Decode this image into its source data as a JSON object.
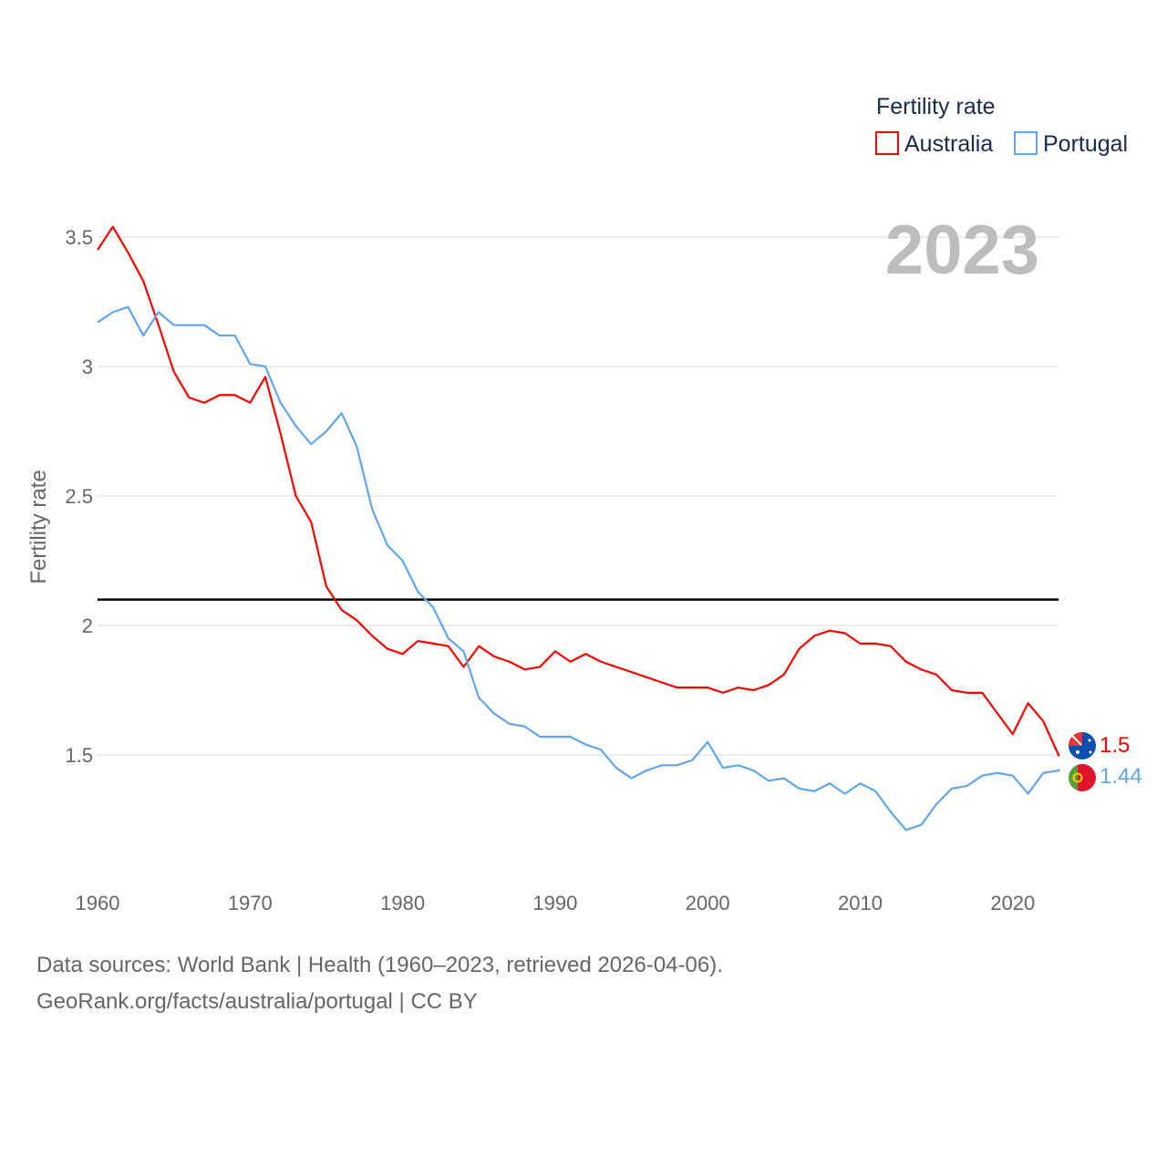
{
  "chart_data": {
    "type": "line",
    "ylabel": "Fertility rate",
    "xlabel": "",
    "legend": {
      "title": "Fertility rate",
      "placement": "top-right"
    },
    "year_label": "2023",
    "xlim": [
      1960,
      2023
    ],
    "ylim": [
      1.0,
      3.5
    ],
    "x_ticks": [
      "1960",
      "1970",
      "1980",
      "1990",
      "2000",
      "2010",
      "2020"
    ],
    "y_ticks": [
      "1.5",
      "2",
      "2.5",
      "3",
      "3.5"
    ],
    "y_tick_values": [
      1.5,
      2,
      2.5,
      3,
      3.5
    ],
    "reference_line": 2.1,
    "grid": true,
    "x": [
      1960,
      1961,
      1962,
      1963,
      1964,
      1965,
      1966,
      1967,
      1968,
      1969,
      1970,
      1971,
      1972,
      1973,
      1974,
      1975,
      1976,
      1977,
      1978,
      1979,
      1980,
      1981,
      1982,
      1983,
      1984,
      1985,
      1986,
      1987,
      1988,
      1989,
      1990,
      1991,
      1992,
      1993,
      1994,
      1995,
      1996,
      1997,
      1998,
      1999,
      2000,
      2001,
      2002,
      2003,
      2004,
      2005,
      2006,
      2007,
      2008,
      2009,
      2010,
      2011,
      2012,
      2013,
      2014,
      2015,
      2016,
      2017,
      2018,
      2019,
      2020,
      2021,
      2022,
      2023
    ],
    "series": [
      {
        "name": "Australia",
        "color": "#ff0000",
        "end_label": "1.5",
        "values": [
          3.45,
          3.54,
          3.44,
          3.33,
          3.16,
          2.98,
          2.88,
          2.86,
          2.89,
          2.89,
          2.86,
          2.96,
          2.74,
          2.5,
          2.4,
          2.15,
          2.06,
          2.02,
          1.96,
          1.91,
          1.89,
          1.94,
          1.93,
          1.92,
          1.84,
          1.92,
          1.88,
          1.86,
          1.83,
          1.84,
          1.9,
          1.86,
          1.89,
          1.86,
          1.84,
          1.82,
          1.8,
          1.78,
          1.76,
          1.76,
          1.76,
          1.74,
          1.76,
          1.75,
          1.77,
          1.81,
          1.91,
          1.96,
          1.98,
          1.97,
          1.93,
          1.93,
          1.92,
          1.86,
          1.83,
          1.81,
          1.75,
          1.74,
          1.74,
          1.66,
          1.58,
          1.7,
          1.63,
          1.5
        ]
      },
      {
        "name": "Portugal",
        "color": "#63a5ec",
        "end_label": "1.44",
        "values": [
          3.17,
          3.21,
          3.23,
          3.12,
          3.21,
          3.16,
          3.16,
          3.16,
          3.12,
          3.12,
          3.01,
          3.0,
          2.86,
          2.77,
          2.7,
          2.75,
          2.82,
          2.69,
          2.45,
          2.31,
          2.25,
          2.13,
          2.07,
          1.95,
          1.9,
          1.72,
          1.66,
          1.62,
          1.61,
          1.57,
          1.57,
          1.57,
          1.54,
          1.52,
          1.45,
          1.41,
          1.44,
          1.46,
          1.46,
          1.48,
          1.55,
          1.45,
          1.46,
          1.44,
          1.4,
          1.41,
          1.37,
          1.36,
          1.39,
          1.35,
          1.39,
          1.36,
          1.28,
          1.21,
          1.23,
          1.31,
          1.37,
          1.38,
          1.42,
          1.43,
          1.42,
          1.35,
          1.43,
          1.44
        ]
      }
    ]
  },
  "footer": {
    "line1": "Data sources: World Bank | Health (1960–2023, retrieved 2026-04-06).",
    "line2": "GeoRank.org/facts/australia/portugal | CC BY"
  }
}
